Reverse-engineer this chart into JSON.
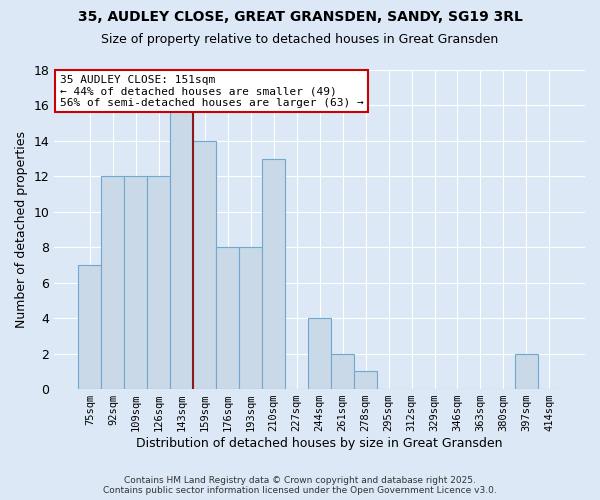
{
  "title_line1": "35, AUDLEY CLOSE, GREAT GRANSDEN, SANDY, SG19 3RL",
  "title_line2": "Size of property relative to detached houses in Great Gransden",
  "xlabel": "Distribution of detached houses by size in Great Gransden",
  "ylabel": "Number of detached properties",
  "bar_labels": [
    "75sqm",
    "92sqm",
    "109sqm",
    "126sqm",
    "143sqm",
    "159sqm",
    "176sqm",
    "193sqm",
    "210sqm",
    "227sqm",
    "244sqm",
    "261sqm",
    "278sqm",
    "295sqm",
    "312sqm",
    "329sqm",
    "346sqm",
    "363sqm",
    "380sqm",
    "397sqm",
    "414sqm"
  ],
  "bar_heights": [
    7,
    12,
    12,
    12,
    16,
    14,
    8,
    8,
    13,
    0,
    4,
    2,
    1,
    0,
    0,
    0,
    0,
    0,
    0,
    2,
    0
  ],
  "bar_color": "#c9d9e8",
  "bar_edge_color": "#6fa8d0",
  "marker_bin_index": 4,
  "marker_label": "35 AUDLEY CLOSE: 151sqm",
  "annotation_line2": "← 44% of detached houses are smaller (49)",
  "annotation_line3": "56% of semi-detached houses are larger (63) →",
  "annotation_box_color": "#ffffff",
  "annotation_box_edge": "#cc0000",
  "marker_line_color": "#8b1a1a",
  "ylim": [
    0,
    18
  ],
  "yticks": [
    0,
    2,
    4,
    6,
    8,
    10,
    12,
    14,
    16,
    18
  ],
  "bg_color": "#dce8f5",
  "footnote_line1": "Contains HM Land Registry data © Crown copyright and database right 2025.",
  "footnote_line2": "Contains public sector information licensed under the Open Government Licence v3.0."
}
